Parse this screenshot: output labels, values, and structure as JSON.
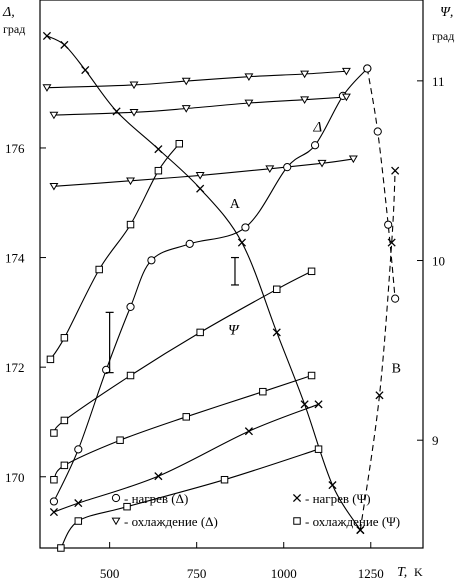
{
  "chart_data": {
    "type": "scatter",
    "x_axis": {
      "name": "T,",
      "unit": "K",
      "range": [
        300,
        1400
      ],
      "ticks": [
        500,
        750,
        1000,
        1250
      ],
      "tick_labels": [
        "500",
        "750",
        "1000",
        "1250"
      ]
    },
    "y_left": {
      "name": "Δ,",
      "unit": "град",
      "range": [
        168.7,
        178.7
      ],
      "ticks": [
        170,
        172,
        174,
        176
      ],
      "tick_labels": [
        "170",
        "172",
        "174",
        "176"
      ]
    },
    "y_right": {
      "name": "Ψ,",
      "unit": "град",
      "range": [
        8.4,
        11.45
      ],
      "ticks": [
        9,
        10,
        11
      ],
      "tick_labels": [
        "9",
        "10",
        "11"
      ]
    },
    "annotations": {
      "A": {
        "text": "A",
        "x": 845,
        "y": 174.9
      },
      "B": {
        "text": "B",
        "x": 1310,
        "y": 171.9
      },
      "delta_curve": {
        "text": "Δ",
        "x": 1085,
        "y": 176.3
      },
      "psi_curve": {
        "text": "Ψ",
        "x": 840,
        "y": 172.6
      }
    },
    "legend": {
      "placement": "bottom",
      "items": [
        {
          "marker": "circle",
          "label": "- нагрев (Δ)"
        },
        {
          "marker": "cross",
          "label": "- нагрев (Ψ)"
        },
        {
          "marker": "triangle-down",
          "label": "- охлаждение (Δ)"
        },
        {
          "marker": "square",
          "label": "- охлаждение (Ψ)"
        }
      ]
    },
    "series": [
      {
        "marker": "circle",
        "axis": "left",
        "line": "solid",
        "points": [
          [
            340,
            169.55
          ],
          [
            410,
            170.5
          ],
          [
            490,
            171.95
          ],
          [
            560,
            173.1
          ],
          [
            620,
            173.95
          ],
          [
            730,
            174.25
          ],
          [
            890,
            174.55
          ],
          [
            1010,
            175.65
          ],
          [
            1090,
            176.05
          ],
          [
            1170,
            176.95
          ],
          [
            1240,
            177.45
          ]
        ]
      },
      {
        "marker": "circle",
        "axis": "left",
        "line": "dashed",
        "points": [
          [
            1240,
            177.45
          ],
          [
            1270,
            176.3
          ],
          [
            1300,
            174.6
          ],
          [
            1320,
            173.25
          ]
        ]
      },
      {
        "marker": "cross",
        "axis": "right",
        "line": "solid",
        "points": [
          [
            320,
            11.25
          ],
          [
            370,
            11.2
          ],
          [
            430,
            11.06
          ],
          [
            520,
            10.83
          ],
          [
            640,
            10.62
          ],
          [
            760,
            10.4
          ],
          [
            880,
            10.1
          ],
          [
            980,
            9.6
          ],
          [
            1060,
            9.2
          ],
          [
            1140,
            8.75
          ],
          [
            1220,
            8.5
          ]
        ]
      },
      {
        "marker": "cross",
        "axis": "right",
        "line": "dashed",
        "points": [
          [
            1220,
            8.5
          ],
          [
            1275,
            9.25
          ],
          [
            1310,
            10.1
          ],
          [
            1320,
            10.5
          ]
        ]
      },
      {
        "marker": "triangle-down",
        "axis": "left",
        "line": "solid",
        "points": [
          [
            320,
            177.1
          ],
          [
            570,
            177.15
          ],
          [
            720,
            177.22
          ],
          [
            900,
            177.3
          ],
          [
            1060,
            177.35
          ],
          [
            1180,
            177.4
          ]
        ]
      },
      {
        "marker": "triangle-down",
        "axis": "left",
        "line": "solid",
        "points": [
          [
            340,
            176.6
          ],
          [
            570,
            176.65
          ],
          [
            720,
            176.72
          ],
          [
            900,
            176.82
          ],
          [
            1060,
            176.88
          ],
          [
            1180,
            176.93
          ]
        ]
      },
      {
        "marker": "triangle-down",
        "axis": "left",
        "line": "solid",
        "points": [
          [
            340,
            175.3
          ],
          [
            560,
            175.4
          ],
          [
            760,
            175.5
          ],
          [
            960,
            175.62
          ],
          [
            1110,
            175.72
          ],
          [
            1200,
            175.8
          ]
        ]
      },
      {
        "marker": "square",
        "axis": "right",
        "line": "solid",
        "points": [
          [
            330,
            9.45
          ],
          [
            370,
            9.57
          ],
          [
            470,
            9.95
          ],
          [
            560,
            10.2
          ],
          [
            640,
            10.5
          ],
          [
            700,
            10.65
          ]
        ]
      },
      {
        "marker": "square",
        "axis": "right",
        "line": "solid",
        "points": [
          [
            340,
            9.04
          ],
          [
            370,
            9.11
          ],
          [
            560,
            9.36
          ],
          [
            760,
            9.6
          ],
          [
            980,
            9.84
          ],
          [
            1080,
            9.94
          ]
        ]
      },
      {
        "marker": "square",
        "axis": "right",
        "line": "solid",
        "points": [
          [
            340,
            8.78
          ],
          [
            370,
            8.86
          ],
          [
            530,
            9.0
          ],
          [
            720,
            9.13
          ],
          [
            940,
            9.27
          ],
          [
            1080,
            9.36
          ]
        ]
      },
      {
        "marker": "cross",
        "axis": "right",
        "line": "solid",
        "points": [
          [
            340,
            8.6
          ],
          [
            410,
            8.65
          ],
          [
            640,
            8.8
          ],
          [
            900,
            9.05
          ],
          [
            1100,
            9.2
          ]
        ]
      },
      {
        "marker": "square",
        "axis": "right",
        "line": "solid",
        "points": [
          [
            360,
            8.4
          ],
          [
            410,
            8.55
          ],
          [
            550,
            8.63
          ],
          [
            830,
            8.78
          ],
          [
            1100,
            8.95
          ]
        ]
      }
    ],
    "error_bars": [
      {
        "axis": "left",
        "x": 500,
        "y_low": 171.9,
        "y_high": 173.0
      },
      {
        "axis": "left",
        "x": 860,
        "y_low": 173.5,
        "y_high": 174.0
      }
    ]
  }
}
